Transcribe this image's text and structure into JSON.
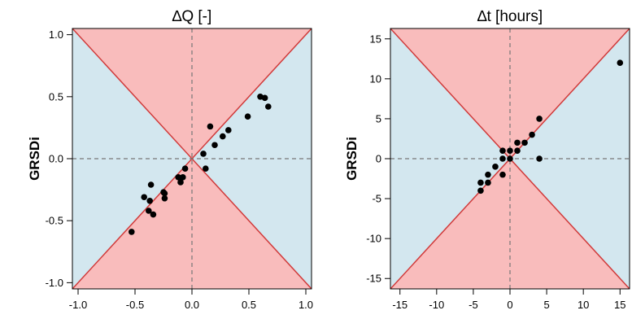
{
  "chart_data": [
    {
      "type": "scatter",
      "title": "∆Q [-]",
      "xlabel": "",
      "ylabel": "GRSDi",
      "xlim": [
        -1.05,
        1.05
      ],
      "ylim": [
        -1.05,
        1.05
      ],
      "xticks": [
        -1.0,
        -0.5,
        0.0,
        0.5,
        1.0
      ],
      "xtick_labels": [
        "-1.0",
        "-0.5",
        "0.0",
        "0.5",
        "1.0"
      ],
      "yticks": [
        -1.0,
        -0.5,
        0.0,
        0.5,
        1.0
      ],
      "ytick_labels": [
        "-1.0",
        "-0.5",
        "0.0",
        "0.5",
        "1.0"
      ],
      "colors": {
        "same_sign_region": "#f9bcbc",
        "opposite_sign_region": "#d3e7ef",
        "diagonal": "#d13a3a",
        "points": "#000000",
        "zero_lines": "#777777"
      },
      "points": [
        [
          -0.53,
          -0.59
        ],
        [
          -0.42,
          -0.31
        ],
        [
          -0.38,
          -0.42
        ],
        [
          -0.37,
          -0.34
        ],
        [
          -0.36,
          -0.21
        ],
        [
          -0.34,
          -0.45
        ],
        [
          -0.25,
          -0.27
        ],
        [
          -0.24,
          -0.32
        ],
        [
          -0.24,
          -0.28
        ],
        [
          -0.12,
          -0.15
        ],
        [
          -0.1,
          -0.19
        ],
        [
          -0.08,
          -0.15
        ],
        [
          -0.06,
          -0.08
        ],
        [
          0.1,
          0.04
        ],
        [
          0.12,
          -0.08
        ],
        [
          0.16,
          0.26
        ],
        [
          0.2,
          0.11
        ],
        [
          0.27,
          0.18
        ],
        [
          0.32,
          0.23
        ],
        [
          0.49,
          0.34
        ],
        [
          0.6,
          0.5
        ],
        [
          0.64,
          0.49
        ],
        [
          0.67,
          0.42
        ]
      ]
    },
    {
      "type": "scatter",
      "title": "∆t [hours]",
      "xlabel": "",
      "ylabel": "GRSDi",
      "xlim": [
        -16.3,
        16.3
      ],
      "ylim": [
        -16.3,
        16.3
      ],
      "xticks": [
        -15,
        -10,
        -5,
        0,
        5,
        10,
        15
      ],
      "xtick_labels": [
        "-15",
        "-10",
        "-5",
        "0",
        "5",
        "10",
        "15"
      ],
      "yticks": [
        -15,
        -10,
        -5,
        0,
        5,
        10,
        15
      ],
      "ytick_labels": [
        "-15",
        "-10",
        "-5",
        "0",
        "5",
        "10",
        "15"
      ],
      "colors": {
        "same_sign_region": "#f9bcbc",
        "opposite_sign_region": "#d3e7ef",
        "diagonal": "#d13a3a",
        "points": "#000000",
        "zero_lines": "#777777"
      },
      "points": [
        [
          -4,
          -4
        ],
        [
          -4,
          -3
        ],
        [
          -3,
          -3
        ],
        [
          -3,
          -2
        ],
        [
          -2,
          -1
        ],
        [
          -1,
          -2
        ],
        [
          -1,
          0
        ],
        [
          -1,
          1
        ],
        [
          0,
          0
        ],
        [
          0,
          1
        ],
        [
          1,
          1
        ],
        [
          1,
          2
        ],
        [
          2,
          2
        ],
        [
          3,
          3
        ],
        [
          4,
          5
        ],
        [
          4,
          0
        ],
        [
          15,
          12
        ]
      ]
    }
  ]
}
